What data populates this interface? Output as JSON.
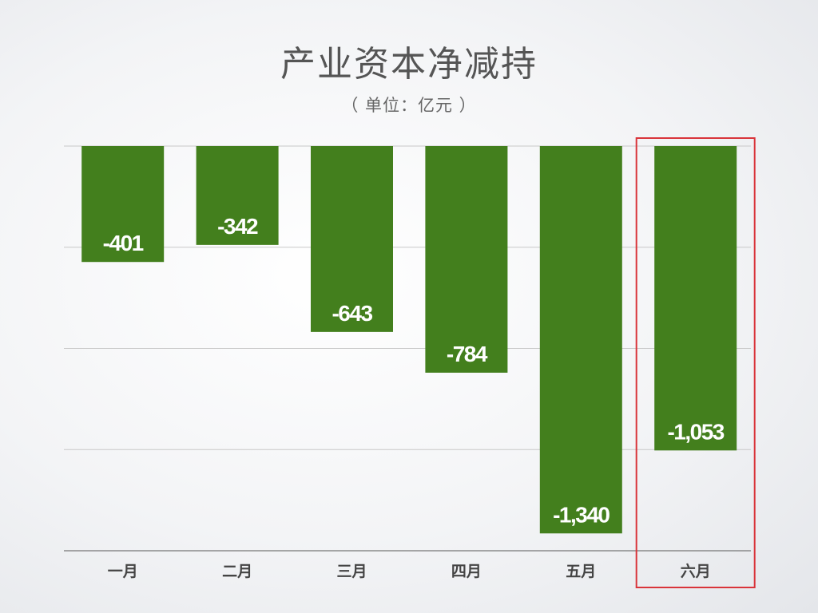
{
  "chart_data": {
    "type": "bar",
    "title": "产业资本净减持",
    "subtitle": "（ 单位：亿元 ）",
    "categories": [
      "一月",
      "二月",
      "三月",
      "四月",
      "五月",
      "六月"
    ],
    "values": [
      -401,
      -342,
      -643,
      -784,
      -1340,
      -1053
    ],
    "value_labels": [
      "-401",
      "-342",
      "-643",
      "-784",
      "-1,340",
      "-1,053"
    ],
    "ylim": [
      -1400,
      0
    ],
    "gridlines": [
      0,
      -350,
      -700,
      -1050,
      -1400
    ],
    "grid": true,
    "legend": "none",
    "highlighted_category": "六月",
    "colors": {
      "bar": "#437f1d",
      "highlight_box": "#d9343a",
      "gridline": "#c8c8c8",
      "baseline": "#777777"
    }
  }
}
